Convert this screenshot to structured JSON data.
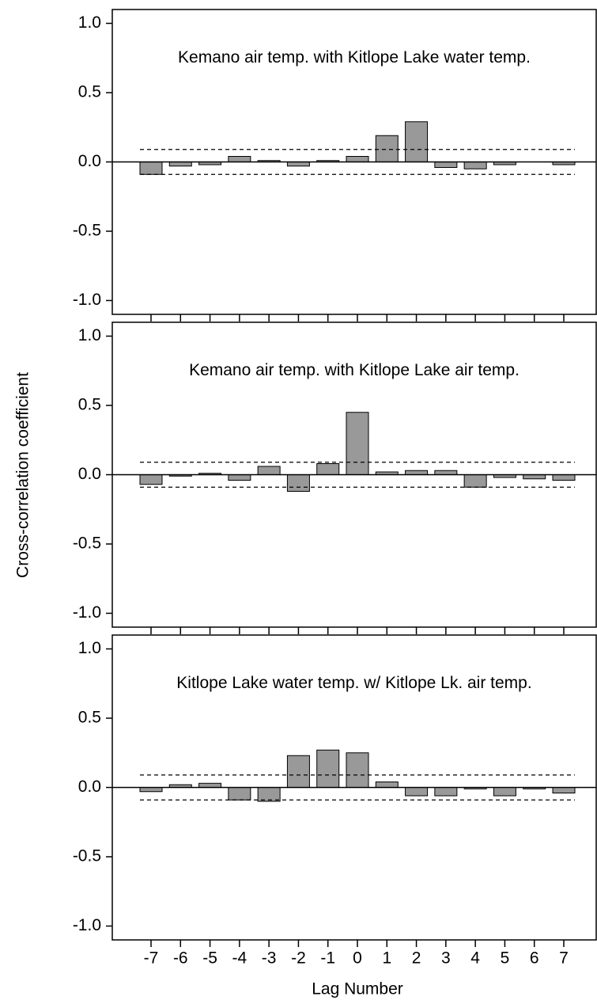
{
  "y_label": "Cross-correlation coefficient",
  "x_label": "Lag Number",
  "chart_data": [
    {
      "type": "bar",
      "title": "Kemano air temp. with Kitlope Lake water temp.",
      "categories": [
        "-7",
        "-6",
        "-5",
        "-4",
        "-3",
        "-2",
        "-1",
        "0",
        "1",
        "2",
        "3",
        "4",
        "5",
        "6",
        "7"
      ],
      "values": [
        -0.09,
        -0.03,
        -0.02,
        0.04,
        0.01,
        -0.03,
        0.01,
        0.04,
        0.19,
        0.29,
        -0.04,
        -0.05,
        -0.02,
        0.0,
        -0.02
      ],
      "color": "#999999",
      "confidence_lines": [
        0.09,
        -0.09
      ],
      "ylim": [
        -1.1,
        1.1
      ],
      "yticks": [
        {
          "value": -1,
          "label": "-1.0"
        },
        -0.5,
        {
          "value": 0,
          "label": "0.0"
        },
        0.5,
        {
          "value": 1,
          "label": "1.0"
        }
      ]
    },
    {
      "type": "bar",
      "title": "Kemano air temp. with Kitlope Lake air temp.",
      "categories": [
        "-7",
        "-6",
        "-5",
        "-4",
        "-3",
        "-2",
        "-1",
        "0",
        "1",
        "2",
        "3",
        "4",
        "5",
        "6",
        "7"
      ],
      "values": [
        -0.07,
        -0.01,
        0.01,
        -0.04,
        0.06,
        -0.12,
        0.08,
        0.45,
        0.02,
        0.03,
        0.03,
        -0.09,
        -0.02,
        -0.03,
        -0.04
      ],
      "color": "#999999",
      "confidence_lines": [
        0.09,
        -0.09
      ],
      "ylim": [
        -1.1,
        1.1
      ],
      "yticks": [
        {
          "value": -1,
          "label": "-1.0"
        },
        -0.5,
        {
          "value": 0,
          "label": "0.0"
        },
        0.5,
        {
          "value": 1,
          "label": "1.0"
        }
      ]
    },
    {
      "type": "bar",
      "title": "Kitlope Lake water temp. w/ Kitlope Lk. air temp.",
      "categories": [
        "-7",
        "-6",
        "-5",
        "-4",
        "-3",
        "-2",
        "-1",
        "0",
        "1",
        "2",
        "3",
        "4",
        "5",
        "6",
        "7"
      ],
      "values": [
        -0.03,
        0.02,
        0.03,
        -0.09,
        -0.1,
        0.23,
        0.27,
        0.25,
        0.04,
        -0.06,
        -0.06,
        -0.01,
        -0.06,
        -0.01,
        -0.04
      ],
      "color": "#999999",
      "confidence_lines": [
        0.09,
        -0.09
      ],
      "ylim": [
        -1.1,
        1.1
      ],
      "yticks": [
        {
          "value": -1,
          "label": "-1.0"
        },
        -0.5,
        {
          "value": 0,
          "label": "0.0"
        },
        0.5,
        {
          "value": 1,
          "label": "1.0"
        }
      ]
    }
  ]
}
